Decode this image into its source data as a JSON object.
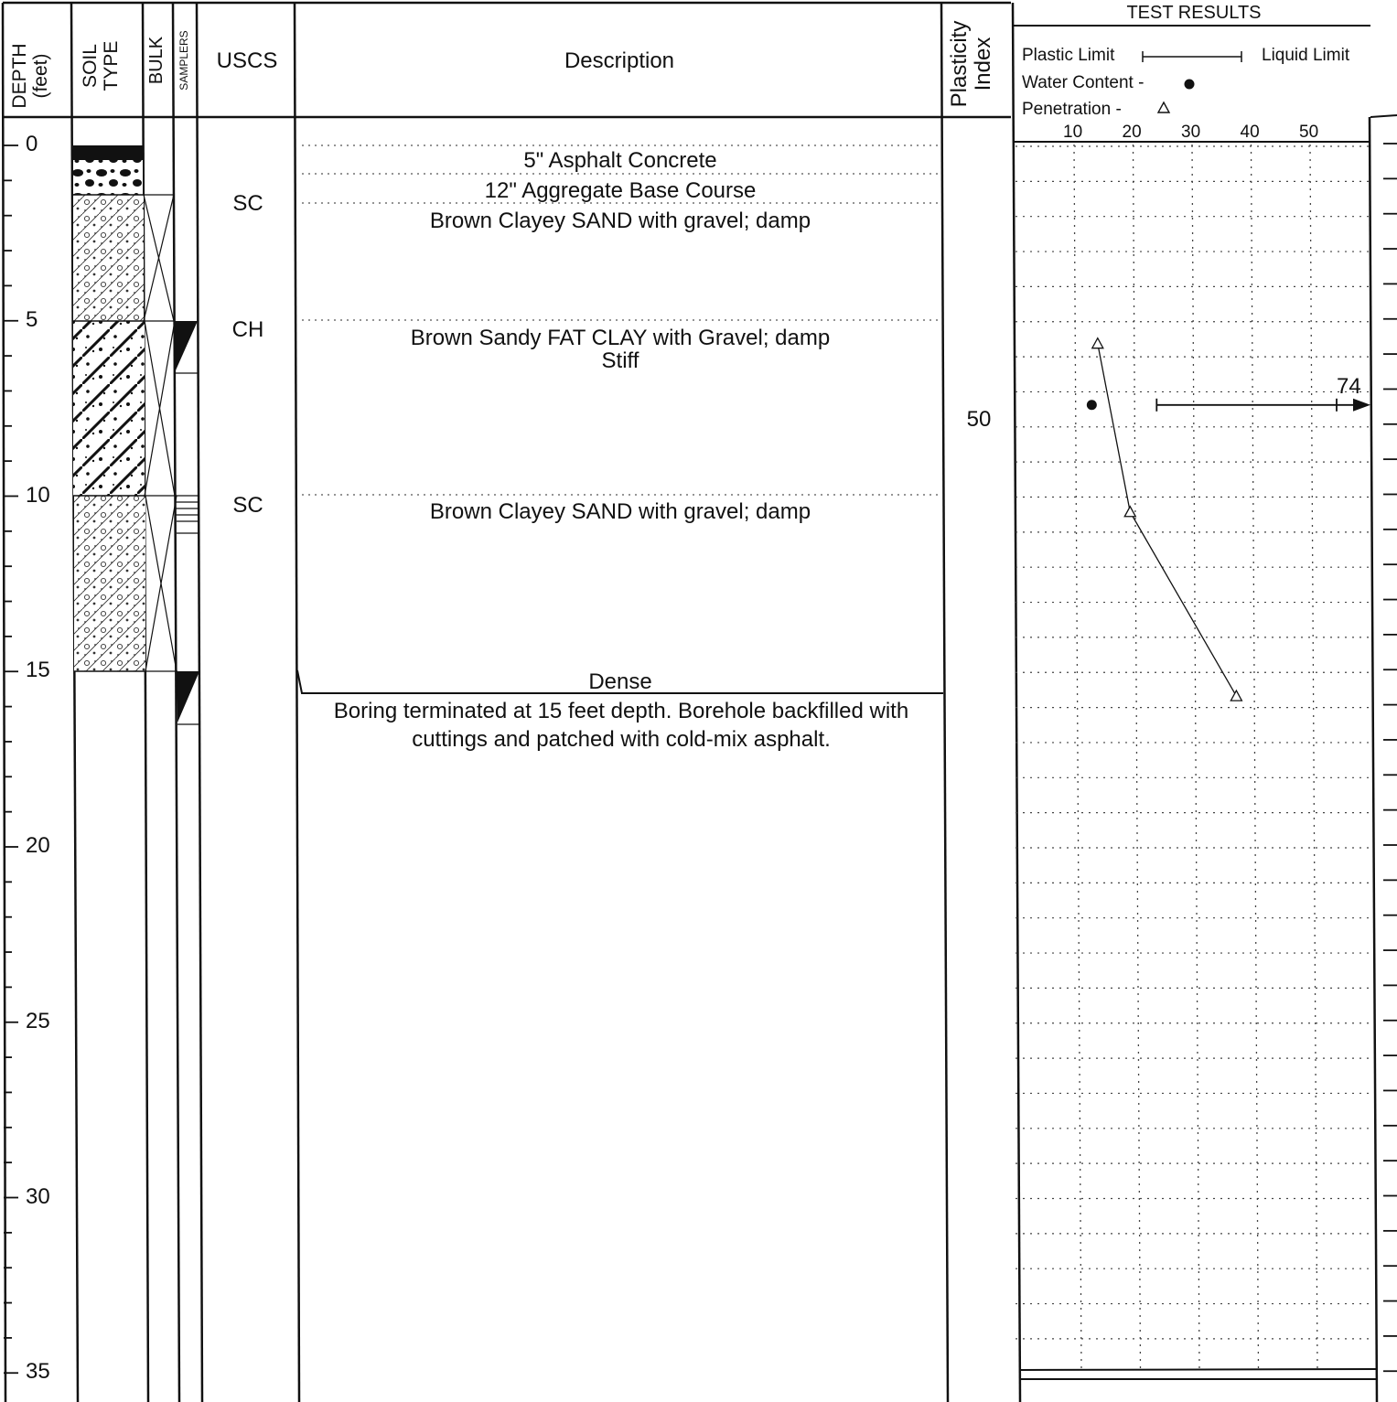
{
  "header": {
    "depth_line1": "DEPTH",
    "depth_line2": "(feet)",
    "soil_line1": "SOIL",
    "soil_line2": "TYPE",
    "bulk": "BULK",
    "samplers": "SAMPLERS",
    "uscs": "USCS",
    "description": "Description",
    "pi_line1": "Plasticity",
    "pi_line2": "Index",
    "test_results": "TEST RESULTS",
    "legend": {
      "plastic_limit": "Plastic Limit",
      "liquid_limit": "Liquid Limit",
      "water_content": "Water Content -",
      "penetration": "Penetration -"
    },
    "scale_ticks": [
      "10",
      "20",
      "30",
      "40",
      "50"
    ]
  },
  "depth_labels": [
    "0",
    "5",
    "10",
    "15",
    "20",
    "25",
    "30",
    "35"
  ],
  "uscs": [
    {
      "depth": 1.7,
      "code": "SC"
    },
    {
      "depth": 5.3,
      "code": "CH"
    },
    {
      "depth": 10.3,
      "code": "SC"
    }
  ],
  "descriptions": [
    {
      "depth": 0.4,
      "text": "5\" Asphalt Concrete"
    },
    {
      "depth": 1.25,
      "text": "12\" Aggregate Base Course"
    },
    {
      "depth": 2.1,
      "text": "Brown Clayey SAND with gravel; damp"
    },
    {
      "depth": 5.45,
      "text": "Brown Sandy FAT CLAY with Gravel;  damp"
    },
    {
      "depth": 6.1,
      "text": "Stiff"
    },
    {
      "depth": 10.4,
      "text": "Brown Clayey SAND with gravel; damp"
    },
    {
      "depth": 15.25,
      "text": "Dense"
    }
  ],
  "termination": {
    "line1": "Boring terminated at 15 feet depth. Borehole backfilled with",
    "line2": "cuttings and patched with cold-mix asphalt."
  },
  "plasticity_index": [
    {
      "depth": 7.8,
      "value": "50"
    }
  ],
  "chart_data": {
    "type": "line",
    "x_ticks": [
      10,
      20,
      30,
      40,
      50
    ],
    "penetration": [
      {
        "x": 14,
        "depth": 5.65
      },
      {
        "x": 19.5,
        "depth": 10.45
      },
      {
        "x": 37.5,
        "depth": 15.7
      }
    ],
    "water_content": [
      {
        "x": 13,
        "depth": 7.4
      }
    ],
    "atterberg": [
      {
        "depth": 7.4,
        "plastic_limit": 24,
        "liquid_limit": 74,
        "liquid_limit_label": "74"
      }
    ]
  },
  "colors": {
    "ink": "#111111",
    "grid": "#444444"
  }
}
